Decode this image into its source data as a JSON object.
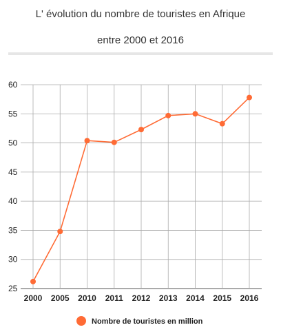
{
  "chart_data": {
    "type": "line",
    "title": "L' évolution du nombre de touristes en Afrique",
    "subtitle": "entre 2000 et 2016",
    "xlabel": "",
    "ylabel": "",
    "categories": [
      "2000",
      "2005",
      "2010",
      "2011",
      "2012",
      "2013",
      "2014",
      "2015",
      "2016"
    ],
    "series": [
      {
        "name": "Nombre de touristes en million",
        "values": [
          26.2,
          34.8,
          50.4,
          50.1,
          52.3,
          54.7,
          55.0,
          53.3,
          57.8
        ]
      }
    ],
    "ylim": [
      25,
      60
    ],
    "yticks": [
      25,
      30,
      35,
      40,
      45,
      50,
      55,
      60
    ],
    "grid": true,
    "legend": "bottom",
    "colors": {
      "line": "#ff6b35",
      "grid": "#aaaaaa",
      "axis": "#777777"
    }
  }
}
